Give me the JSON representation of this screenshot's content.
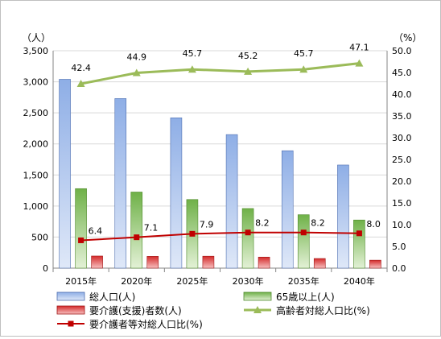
{
  "chart_data": {
    "type": "bar",
    "categories": [
      "2015年",
      "2020年",
      "2025年",
      "2030年",
      "2035年",
      "2040年"
    ],
    "left_axis": {
      "unit": "（人）",
      "min": 0,
      "max": 3500,
      "step": 500,
      "ticks": [
        "0",
        "500",
        "1,000",
        "1,500",
        "2,000",
        "2,500",
        "3,000",
        "3,500"
      ]
    },
    "right_axis": {
      "unit": "（%）",
      "min": 0,
      "max": 50,
      "step": 5,
      "ticks": [
        "0.0",
        "5.0",
        "10.0",
        "15.0",
        "20.0",
        "25.0",
        "30.0",
        "35.0",
        "40.0",
        "45.0",
        "50.0"
      ]
    },
    "bar_series": [
      {
        "name": "総人口(人)",
        "values": [
          3040,
          2730,
          2420,
          2150,
          1890,
          1660
        ],
        "color": "#aec4ec"
      },
      {
        "name": "65歳以上(人)",
        "values": [
          1280,
          1225,
          1105,
          960,
          860,
          775
        ],
        "color": "#8fc46a"
      },
      {
        "name": "要介護(支援)者数(人)",
        "values": [
          195,
          190,
          192,
          178,
          155,
          128
        ],
        "color": "#e03a3a"
      }
    ],
    "line_series": [
      {
        "name": "高齢者対総人口比(%)",
        "values": [
          42.4,
          44.9,
          45.7,
          45.2,
          45.7,
          47.1
        ],
        "labels": [
          "42.4",
          "44.9",
          "45.7",
          "45.2",
          "45.7",
          "47.1"
        ],
        "color": "#9bbb59",
        "marker": "triangle"
      },
      {
        "name": "要介護者等対総人口比(%)",
        "values": [
          6.4,
          7.1,
          7.9,
          8.2,
          8.2,
          8.0
        ],
        "labels": [
          "6.4",
          "7.1",
          "7.9",
          "8.2",
          "8.2",
          "8.0"
        ],
        "color": "#c00000",
        "marker": "square"
      }
    ],
    "grid": true,
    "legend_position": "bottom"
  }
}
